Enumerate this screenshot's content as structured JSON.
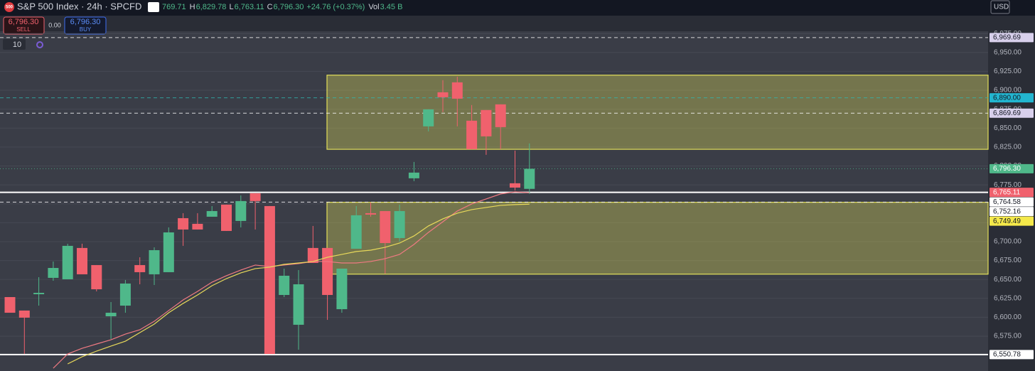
{
  "chart_data": {
    "type": "candlestick",
    "header": {
      "logo": "500",
      "title": "S&P 500 Index · 24h · SPCFD",
      "open_partial": "769.71",
      "fields": [
        {
          "key": "H",
          "value": "6,829.78"
        },
        {
          "key": "L",
          "value": "6,763.11"
        },
        {
          "key": "C",
          "value": "6,796.30"
        }
      ],
      "change": "+24.76 (+0.37%)",
      "volume_key": "Vol",
      "volume": "3.45 B"
    },
    "trade": {
      "sell_price": "6,796.30",
      "sell_label": "SELL",
      "spread": "0.00",
      "buy_price": "6,796.30",
      "buy_label": "BUY"
    },
    "interval": "10",
    "currency": "USD",
    "up_color": "#4fb88a",
    "down_color": "#f0616d",
    "open": [
      6626.7,
      6608.9,
      6630.5,
      6652.1,
      6650.2,
      6691.6,
      6669.0,
      6601.3,
      6615.4,
      6669.0,
      6656.8,
      6659.6,
      6731.0,
      6723.5,
      6732.9,
      6748.9,
      6727.3,
      6763.9,
      6747.0,
      6629.5,
      6590.1,
      6691.6,
      6691.6,
      6610.7,
      6690.6,
      6737.6,
      6740.4,
      6704.7,
      6783.7,
      6852.3,
      6897.4,
      6910.5,
      6859.8,
      6873.9,
      6881.4,
      6777.1,
      6769.71
    ],
    "high": [
      6626.7,
      6608.9,
      6653.0,
      6673.7,
      6697.2,
      6697.2,
      6669.0,
      6620.1,
      6649.3,
      6679.3,
      6692.5,
      6718.8,
      6737.6,
      6737.6,
      6747.0,
      6748.9,
      6761.1,
      6763.9,
      6747.0,
      6664.3,
      6662.4,
      6720.7,
      6691.6,
      6664.3,
      6747.0,
      6751.7,
      6740.4,
      6748.9,
      6805.3,
      6874.8,
      6913.3,
      6918.0,
      6880.5,
      6873.9,
      6881.4,
      6820.3,
      6829.78
    ],
    "low": [
      6606.0,
      6551.5,
      6615.4,
      6648.3,
      6650.2,
      6656.8,
      6634.2,
      6571.3,
      6606.0,
      6643.6,
      6642.7,
      6659.6,
      6694.4,
      6716.0,
      6732.9,
      6714.1,
      6718.8,
      6716.0,
      6551.5,
      6626.7,
      6557.2,
      6671.8,
      6596.6,
      6606.0,
      6690.6,
      6732.9,
      6657.7,
      6700.0,
      6779.9,
      6845.7,
      6871.1,
      6852.3,
      6822.2,
      6814.7,
      6822.2,
      6767.7,
      6763.11
    ],
    "close": [
      6606.0,
      6599.5,
      6632.3,
      6665.2,
      6694.4,
      6656.8,
      6637.0,
      6606.0,
      6644.6,
      6659.6,
      6688.7,
      6712.2,
      6716.0,
      6716.0,
      6740.4,
      6714.1,
      6753.6,
      6753.6,
      6551.5,
      6654.9,
      6643.6,
      6671.8,
      6629.5,
      6664.3,
      6734.8,
      6735.7,
      6698.1,
      6740.4,
      6791.2,
      6874.8,
      6890.8,
      6888.9,
      6822.2,
      6839.1,
      6851.3,
      6771.4,
      6796.3
    ],
    "series": [
      {
        "color": "#f07a82",
        "values": [
          null,
          null,
          null,
          6532.7,
          6551.5,
          6559.0,
          6564.7,
          6570.3,
          6577.8,
          6583.5,
          6594.7,
          6608.9,
          6622.9,
          6634.2,
          6646.4,
          6654.9,
          6662.4,
          6669.0,
          6667.1,
          6669.0,
          6670.9,
          6673.7,
          6673.7,
          6671.8,
          6671.8,
          6673.7,
          6677.5,
          6683.1,
          6696.3,
          6712.2,
          6726.3,
          6740.4,
          6749.8,
          6756.4,
          6763.0,
          6765.8,
          6764.58
        ]
      },
      {
        "color": "#e8d95a",
        "values": [
          null,
          null,
          null,
          null,
          6538.4,
          6547.8,
          6555.3,
          6561.9,
          6568.4,
          6579.7,
          6591.0,
          6606.0,
          6618.3,
          6629.5,
          6641.7,
          6651.1,
          6658.7,
          6664.3,
          6666.2,
          6670.0,
          6671.8,
          6673.7,
          6679.3,
          6683.1,
          6686.9,
          6688.7,
          6692.5,
          6698.1,
          6707.5,
          6720.7,
          6730.1,
          6737.6,
          6742.3,
          6745.1,
          6747.9,
          6748.9,
          6749.49
        ]
      }
    ],
    "zones": [
      {
        "top": 6920,
        "bottom": 6822,
        "color": "#e3e05a"
      },
      {
        "top": 6752,
        "bottom": 6657,
        "color": "#e3e05a"
      }
    ],
    "levels": [
      {
        "value": 6969.69,
        "color": "#ffffff",
        "style": "dashed"
      },
      {
        "value": 6890.0,
        "color": "#2fb8b0",
        "style": "dashed"
      },
      {
        "value": 6869.69,
        "color": "#ffffff",
        "style": "dashed"
      },
      {
        "value": 6796.3,
        "color": "#4fb88a",
        "style": "dotted"
      },
      {
        "value": 6765.11,
        "color": "#ffffff",
        "style": "solid"
      },
      {
        "value": 6752.16,
        "color": "#ffffff",
        "style": "dashed"
      },
      {
        "value": 6550.78,
        "color": "#ffffff",
        "style": "solid"
      }
    ],
    "axis_labels": [
      {
        "value": 6969.69,
        "label": "6,969.69",
        "bg": "#d8d0ec",
        "fg": "#131722"
      },
      {
        "value": 6890.0,
        "label": "6,890.00",
        "bg": "#22b5d0",
        "fg": "#131722"
      },
      {
        "value": 6869.69,
        "label": "6,869.69",
        "bg": "#d8d0ec",
        "fg": "#131722"
      },
      {
        "value": 6796.3,
        "label": "6,796.30",
        "bg": "#4fb88a",
        "fg": "#ffffff"
      },
      {
        "value": 6765.11,
        "label": "6,765.11",
        "bg": "#f0616d",
        "fg": "#ffffff"
      },
      {
        "value": 6764.58,
        "label": "6,764.58",
        "bg": "#ffffff",
        "fg": "#131722"
      },
      {
        "value": 6752.16,
        "label": "6,752.16",
        "bg": "#ffffff",
        "fg": "#131722"
      },
      {
        "value": 6749.49,
        "label": "6,749.49",
        "bg": "#f5e94a",
        "fg": "#131722"
      },
      {
        "value": 6550.78,
        "label": "6,550.78",
        "bg": "#ffffff",
        "fg": "#131722"
      }
    ],
    "ylim": [
      6529,
      6978
    ],
    "yticks": [
      {
        "value": 6575,
        "label": "6,575.00"
      },
      {
        "value": 6600,
        "label": "6,600.00"
      },
      {
        "value": 6625,
        "label": "6,625.00"
      },
      {
        "value": 6650,
        "label": "6,650.00"
      },
      {
        "value": 6675,
        "label": "6,675.00"
      },
      {
        "value": 6700,
        "label": "6,700.00"
      },
      {
        "value": 6725,
        "label": "6,725.00"
      },
      {
        "value": 6750,
        "label": "6,750.00"
      },
      {
        "value": 6775,
        "label": "6,775.00"
      },
      {
        "value": 6800,
        "label": "6,800.00"
      },
      {
        "value": 6825,
        "label": "6,825.00"
      },
      {
        "value": 6850,
        "label": "6,850.00"
      },
      {
        "value": 6875,
        "label": "6,875.00"
      },
      {
        "value": 6900,
        "label": "6,900.00"
      },
      {
        "value": 6925,
        "label": "6,925.00"
      },
      {
        "value": 6950,
        "label": "6,950.00"
      },
      {
        "value": 6975,
        "label": "6,975.00"
      }
    ],
    "grid": true
  }
}
